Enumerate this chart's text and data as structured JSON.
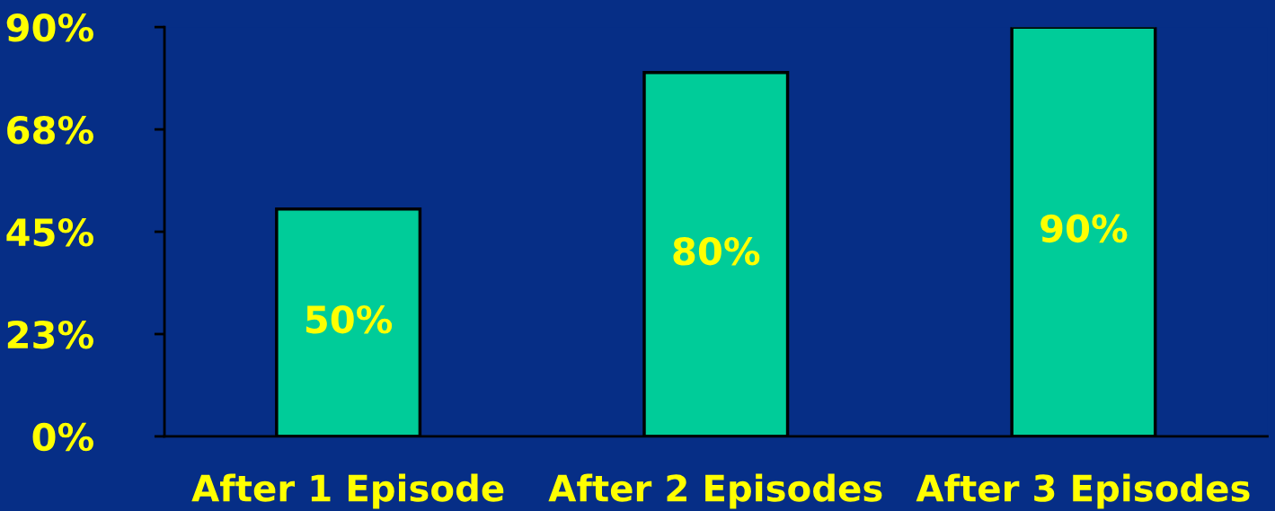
{
  "chart_data": {
    "type": "bar",
    "categories": [
      "After 1 Episode",
      "After 2 Episodes",
      "After 3 Episodes"
    ],
    "values": [
      50,
      80,
      90
    ],
    "color": "#00cc99",
    "value_labels": [
      "50%",
      "80%",
      "90%"
    ],
    "ylim": [
      0,
      90
    ],
    "yticks": [
      {
        "value": 0,
        "label": "0%"
      },
      {
        "value": 22.5,
        "label": "23%"
      },
      {
        "value": 45,
        "label": "45%"
      },
      {
        "value": 67.5,
        "label": "68%"
      },
      {
        "value": 90,
        "label": "90%"
      }
    ],
    "grid": false,
    "legend": false
  }
}
